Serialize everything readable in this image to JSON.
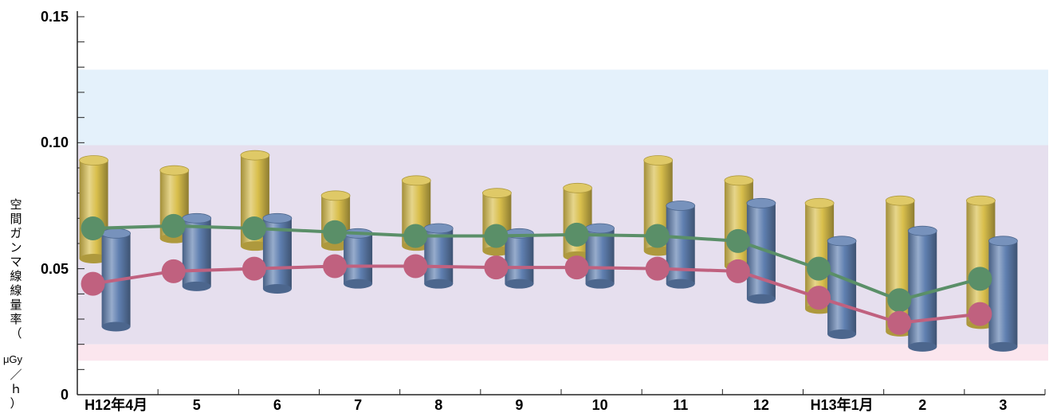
{
  "chart_data": {
    "type": "bar",
    "ylabel_main": "空間ガンマ線線量率（",
    "ylabel_unit": "μGy",
    "ylabel_close": "／ｈ）",
    "y_tick_labels": [
      "0",
      "0.05",
      "0.10",
      "0.15"
    ],
    "ylim": [
      0,
      0.155
    ],
    "grid": false,
    "categories": [
      "H12年4月",
      "5",
      "6",
      "7",
      "8",
      "9",
      "10",
      "11",
      "12",
      "H13年1月",
      "2",
      "3"
    ],
    "bands": [
      {
        "from": 0.099,
        "to": 0.129,
        "color": "#e4f1fb"
      },
      {
        "from": 0.02,
        "to": 0.099,
        "color": "#e6dfee"
      },
      {
        "from": 0.0135,
        "to": 0.02,
        "color": "#fbe6ee"
      }
    ],
    "range_series": [
      {
        "color": "#d9bf4c",
        "ranges": [
          [
            0.054,
            0.093
          ],
          [
            0.062,
            0.089
          ],
          [
            0.059,
            0.095
          ],
          [
            0.059,
            0.079
          ],
          [
            0.059,
            0.085
          ],
          [
            0.057,
            0.08
          ],
          [
            0.055,
            0.082
          ],
          [
            0.057,
            0.093
          ],
          [
            0.051,
            0.085
          ],
          [
            0.034,
            0.076
          ],
          [
            0.025,
            0.077
          ],
          [
            0.028,
            0.077
          ]
        ]
      },
      {
        "color": "#5f7fb0",
        "ranges": [
          [
            0.027,
            0.064
          ],
          [
            0.043,
            0.07
          ],
          [
            0.042,
            0.07
          ],
          [
            0.044,
            0.064
          ],
          [
            0.044,
            0.066
          ],
          [
            0.044,
            0.064
          ],
          [
            0.044,
            0.066
          ],
          [
            0.044,
            0.075
          ],
          [
            0.038,
            0.076
          ],
          [
            0.024,
            0.061
          ],
          [
            0.019,
            0.065
          ],
          [
            0.019,
            0.061
          ]
        ]
      }
    ],
    "series": [
      {
        "color": "#5a8f68",
        "values": [
          0.066,
          0.067,
          0.066,
          0.0645,
          0.063,
          0.063,
          0.0635,
          0.063,
          0.061,
          0.05,
          0.0375,
          0.046
        ]
      },
      {
        "color": "#c0617f",
        "values": [
          0.044,
          0.049,
          0.05,
          0.051,
          0.051,
          0.0505,
          0.0505,
          0.05,
          0.049,
          0.0385,
          0.0285,
          0.032
        ]
      }
    ]
  }
}
